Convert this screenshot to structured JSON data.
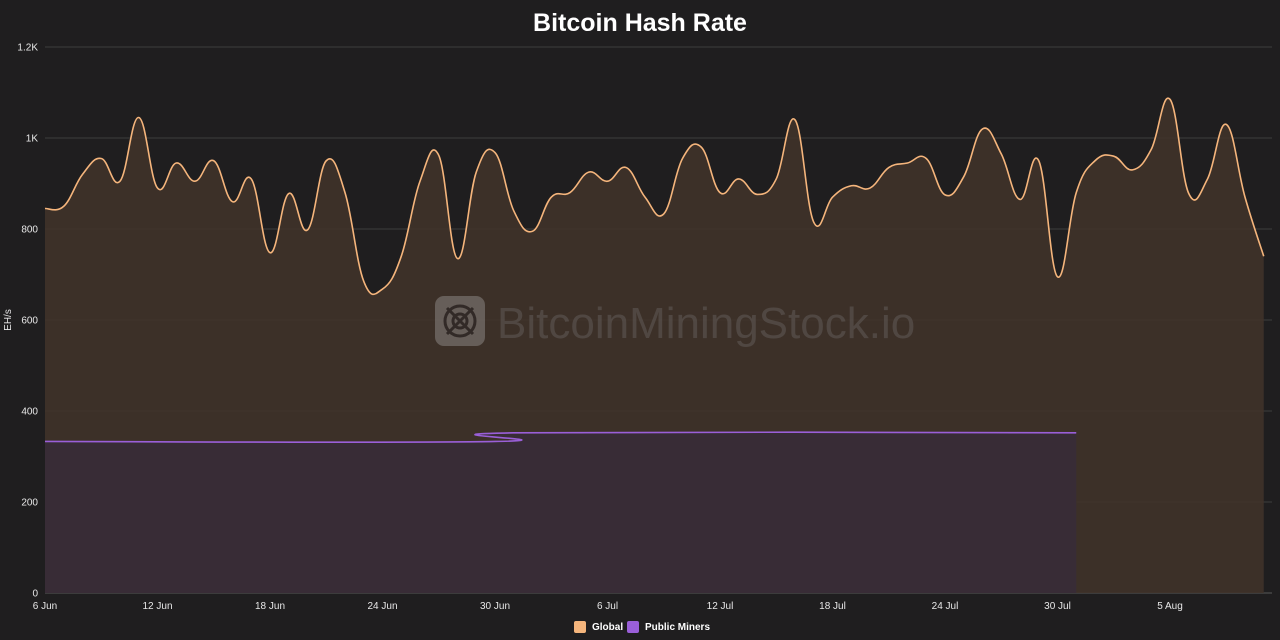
{
  "chart_data": {
    "type": "area",
    "title": "Bitcoin Hash Rate",
    "ylabel": "EH/s",
    "xlabel": "",
    "ylim": [
      0,
      1200
    ],
    "yticks": [
      0,
      200,
      400,
      600,
      800,
      1000,
      1200
    ],
    "ytick_labels": [
      "0",
      "200",
      "400",
      "600",
      "800",
      "1K",
      "1.2K"
    ],
    "x_start": "2024-06-06",
    "x_end": "2024-08-09",
    "xticks": [
      {
        "date": "2024-06-06",
        "label": "6 Jun"
      },
      {
        "date": "2024-06-12",
        "label": "12 Jun"
      },
      {
        "date": "2024-06-18",
        "label": "18 Jun"
      },
      {
        "date": "2024-06-24",
        "label": "24 Jun"
      },
      {
        "date": "2024-06-30",
        "label": "30 Jun"
      },
      {
        "date": "2024-07-06",
        "label": "6 Jul"
      },
      {
        "date": "2024-07-12",
        "label": "12 Jul"
      },
      {
        "date": "2024-07-18",
        "label": "18 Jul"
      },
      {
        "date": "2024-07-24",
        "label": "24 Jul"
      },
      {
        "date": "2024-07-30",
        "label": "30 Jul"
      },
      {
        "date": "2024-08-05",
        "label": "5 Aug"
      }
    ],
    "grid": true,
    "legend_position": "bottom-center",
    "watermark": "BitcoinMiningStock.io",
    "series": [
      {
        "name": "Global",
        "color": "#f5b57c",
        "fill": "#3f3229",
        "points": [
          [
            "2024-06-06",
            845
          ],
          [
            "2024-06-07",
            850
          ],
          [
            "2024-06-08",
            920
          ],
          [
            "2024-06-09",
            955
          ],
          [
            "2024-06-10",
            905
          ],
          [
            "2024-06-11",
            1045
          ],
          [
            "2024-06-12",
            890
          ],
          [
            "2024-06-13",
            945
          ],
          [
            "2024-06-14",
            905
          ],
          [
            "2024-06-15",
            950
          ],
          [
            "2024-06-16",
            860
          ],
          [
            "2024-06-17",
            910
          ],
          [
            "2024-06-18",
            748
          ],
          [
            "2024-06-19",
            878
          ],
          [
            "2024-06-20",
            798
          ],
          [
            "2024-06-21",
            950
          ],
          [
            "2024-06-22",
            880
          ],
          [
            "2024-06-23",
            685
          ],
          [
            "2024-06-24",
            668
          ],
          [
            "2024-06-25",
            740
          ],
          [
            "2024-06-26",
            905
          ],
          [
            "2024-06-27",
            962
          ],
          [
            "2024-06-28",
            735
          ],
          [
            "2024-06-29",
            925
          ],
          [
            "2024-06-30",
            968
          ],
          [
            "2024-07-01",
            840
          ],
          [
            "2024-07-02",
            795
          ],
          [
            "2024-07-03",
            870
          ],
          [
            "2024-07-04",
            880
          ],
          [
            "2024-07-05",
            925
          ],
          [
            "2024-07-06",
            905
          ],
          [
            "2024-07-07",
            935
          ],
          [
            "2024-07-08",
            870
          ],
          [
            "2024-07-09",
            833
          ],
          [
            "2024-07-10",
            955
          ],
          [
            "2024-07-11",
            980
          ],
          [
            "2024-07-12",
            880
          ],
          [
            "2024-07-13",
            910
          ],
          [
            "2024-07-14",
            876
          ],
          [
            "2024-07-15",
            910
          ],
          [
            "2024-07-16",
            1040
          ],
          [
            "2024-07-17",
            815
          ],
          [
            "2024-07-18",
            870
          ],
          [
            "2024-07-19",
            895
          ],
          [
            "2024-07-20",
            890
          ],
          [
            "2024-07-21",
            935
          ],
          [
            "2024-07-22",
            945
          ],
          [
            "2024-07-23",
            955
          ],
          [
            "2024-07-24",
            875
          ],
          [
            "2024-07-25",
            915
          ],
          [
            "2024-07-26",
            1020
          ],
          [
            "2024-07-27",
            965
          ],
          [
            "2024-07-28",
            865
          ],
          [
            "2024-07-29",
            950
          ],
          [
            "2024-07-30",
            695
          ],
          [
            "2024-07-31",
            880
          ],
          [
            "2024-08-01",
            950
          ],
          [
            "2024-08-02",
            960
          ],
          [
            "2024-08-03",
            930
          ],
          [
            "2024-08-04",
            975
          ],
          [
            "2024-08-05",
            1085
          ],
          [
            "2024-08-06",
            878
          ],
          [
            "2024-08-07",
            910
          ],
          [
            "2024-08-08",
            1030
          ],
          [
            "2024-08-09",
            870
          ],
          [
            "2024-08-10",
            740
          ]
        ]
      },
      {
        "name": "Public Miners",
        "color": "#9a5fd8",
        "fill": "#372c37",
        "points": [
          [
            "2024-06-06",
            333
          ],
          [
            "2024-06-30",
            333
          ],
          [
            "2024-07-01",
            352
          ],
          [
            "2024-07-31",
            352
          ]
        ]
      }
    ]
  }
}
